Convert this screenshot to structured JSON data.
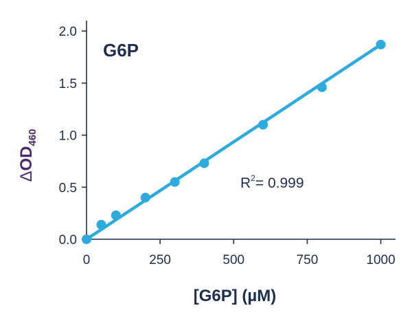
{
  "chart_data": {
    "type": "scatter",
    "title": "G6P",
    "xlabel": "[G6P] (µM)",
    "ylabel": {
      "delta": "Δ",
      "main": "OD",
      "sub": "460"
    },
    "xlim": [
      0,
      1050
    ],
    "ylim": [
      0,
      2.1
    ],
    "xticks": [
      0,
      250,
      500,
      750,
      1000
    ],
    "yticks": [
      0.0,
      0.5,
      1.0,
      1.5,
      2.0
    ],
    "xtick_labels": [
      "0",
      "250",
      "500",
      "750",
      "1000"
    ],
    "ytick_labels": [
      "0.0",
      "0.5",
      "1.0",
      "1.5",
      "2.0"
    ],
    "grid": false,
    "series": [
      {
        "x": [
          0,
          50,
          100,
          200,
          300,
          400,
          600,
          800,
          1000
        ],
        "y": [
          0.0,
          0.14,
          0.23,
          0.4,
          0.55,
          0.73,
          1.1,
          1.46,
          1.87
        ]
      }
    ],
    "fit_line": {
      "x": [
        0,
        1000
      ],
      "y": [
        0.0,
        1.87
      ]
    },
    "annotation": {
      "r_label": "R",
      "r_sup": "2",
      "r_value": "= 0.999"
    },
    "colors": {
      "series": "#2eaadc",
      "axis": "#1f2d4e",
      "ylabel": "#4a2a6b"
    }
  }
}
